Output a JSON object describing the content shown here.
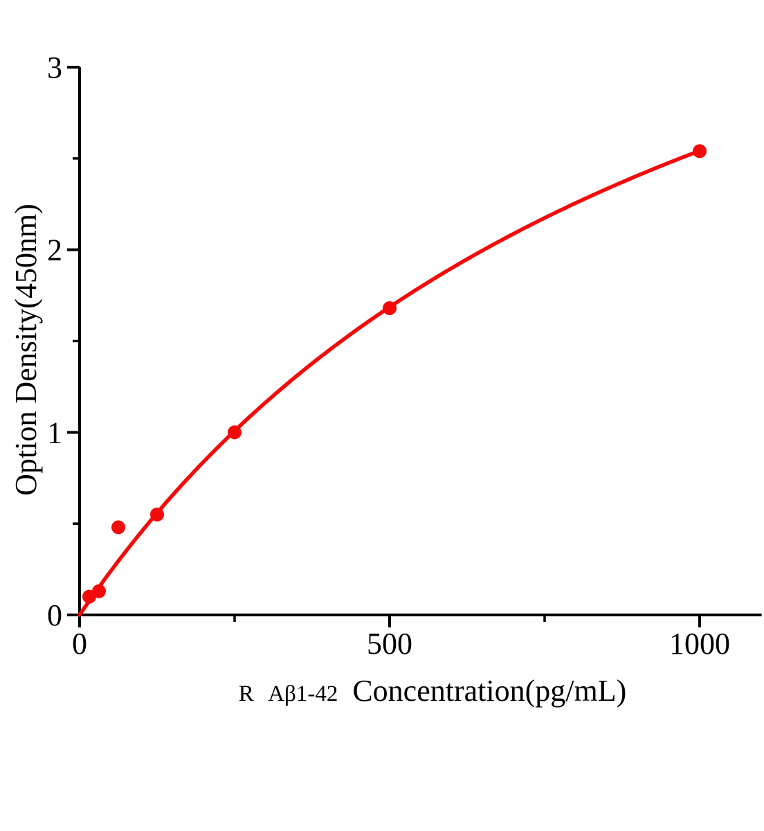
{
  "chart_data": {
    "type": "scatter",
    "subtype": "standard-curve-with-fit",
    "title": "",
    "xlabel_prefix": "R Aβ1-42",
    "xlabel_main": "Concentration(pg/mL)",
    "ylabel": "Option Density(450nm)",
    "points": [
      {
        "conc": 15.6,
        "od": 0.1
      },
      {
        "conc": 31.25,
        "od": 0.13
      },
      {
        "conc": 62.5,
        "od": 0.48
      },
      {
        "conc": 125,
        "od": 0.55
      },
      {
        "conc": 250,
        "od": 1.0
      },
      {
        "conc": 500,
        "od": 1.68
      },
      {
        "conc": 1000,
        "od": 2.54
      }
    ],
    "xlim": [
      0,
      1100
    ],
    "ylim": [
      0,
      3
    ],
    "x_major_ticks": [
      0,
      500,
      1000
    ],
    "x_minor_ticks": [
      250,
      750
    ],
    "y_major_ticks": [
      0,
      1,
      2,
      3
    ],
    "y_minor_ticks": [
      0.5,
      1.5,
      2.5
    ],
    "fit_curve": {
      "model": "michaelis_menten",
      "vmax": 5.16,
      "k": 1030,
      "x_range": [
        0,
        1000
      ]
    },
    "legend": "none",
    "grid": false,
    "marker": "circle",
    "colors": {
      "series": "#f40a0a",
      "axis": "#000000",
      "background": "#ffffff"
    }
  }
}
